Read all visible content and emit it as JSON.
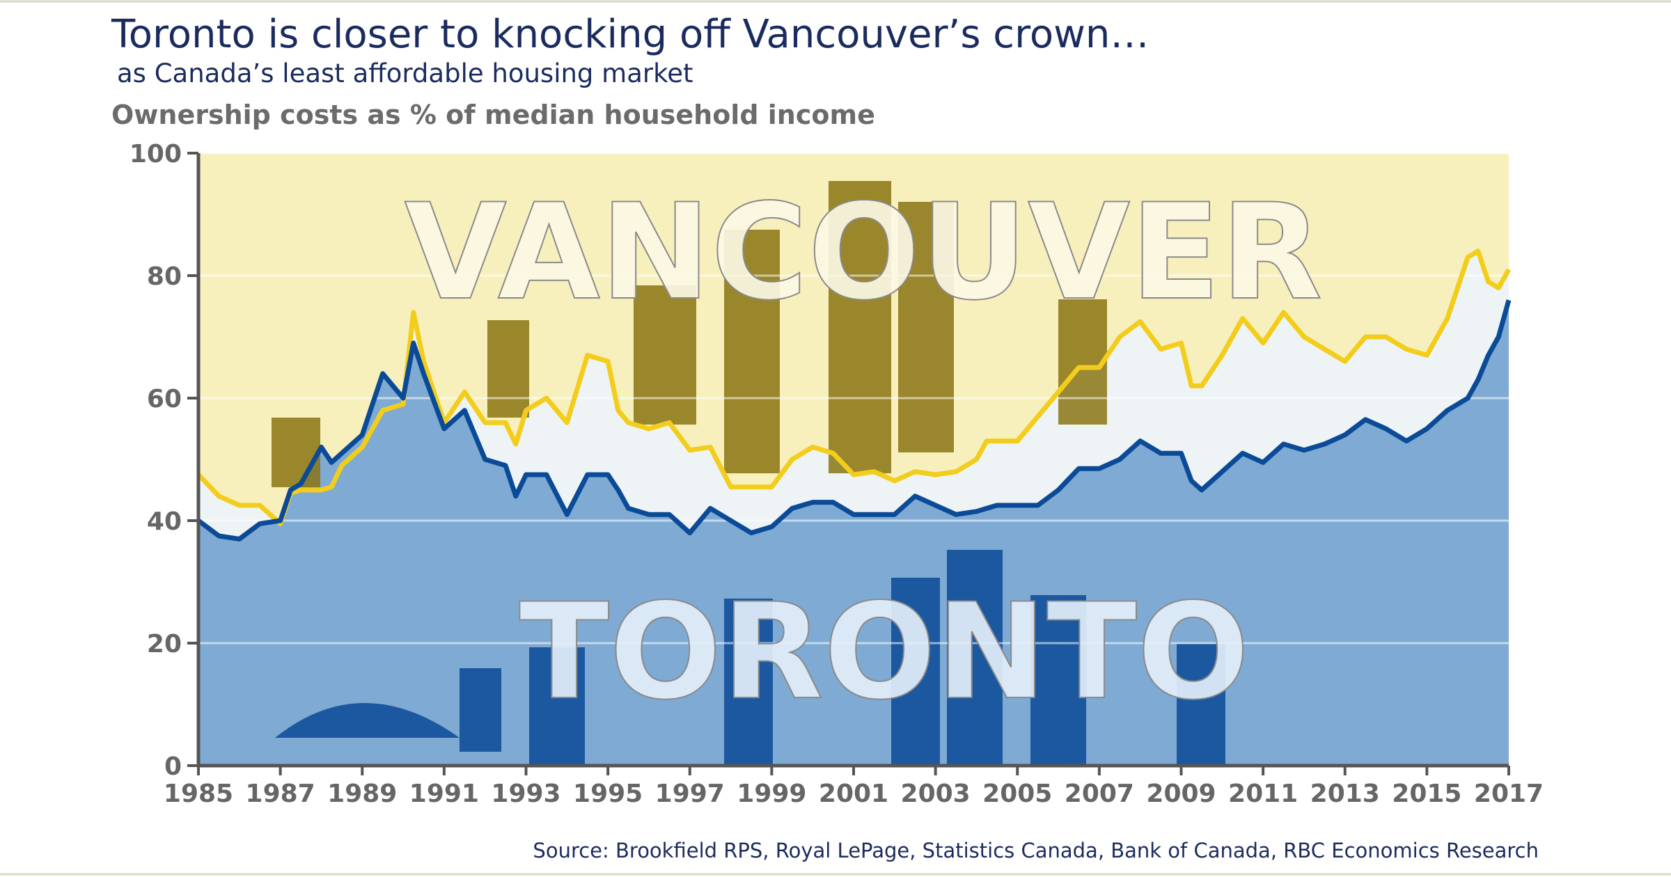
{
  "chart_data": {
    "type": "line",
    "title": "Toronto is closer to knocking off Vancouver’s crown…",
    "subtitle": "as Canada’s least affordable housing market",
    "y_label": "Ownership costs as % of median household income",
    "source": "Source: Brookfield RPS, Royal LePage, Statistics Canada, Bank of Canada, RBC Economics Research",
    "annotations": [
      "VANCOUVER",
      "TORONTO"
    ],
    "x": [
      1985,
      1985.5,
      1986,
      1986.5,
      1987,
      1987.25,
      1987.5,
      1988,
      1988.25,
      1988.5,
      1989,
      1989.5,
      1990,
      1990.25,
      1990.5,
      1991,
      1991.5,
      1992,
      1992.5,
      1992.75,
      1993,
      1993.5,
      1994,
      1994.5,
      1995,
      1995.25,
      1995.5,
      1996,
      1996.5,
      1997,
      1997.5,
      1998,
      1998.5,
      1999,
      1999.5,
      2000,
      2000.5,
      2001,
      2001.5,
      2002,
      2002.5,
      2003,
      2003.5,
      2004,
      2004.25,
      2004.5,
      2005,
      2005.5,
      2006,
      2006.5,
      2007,
      2007.5,
      2008,
      2008.5,
      2009,
      2009.25,
      2009.5,
      2010,
      2010.5,
      2011,
      2011.5,
      2012,
      2012.5,
      2013,
      2013.5,
      2014,
      2014.5,
      2015,
      2015.5,
      2016,
      2016.25,
      2016.5,
      2016.75,
      2017
    ],
    "series": [
      {
        "name": "VANCOUVER",
        "color": "#f2cd1c",
        "values": [
          47.5,
          44,
          42.5,
          42.5,
          39.5,
          44.5,
          45,
          45,
          45.5,
          49,
          52,
          58,
          59,
          74,
          66,
          56,
          61,
          56,
          56,
          52.5,
          58,
          60,
          56,
          67,
          66,
          58,
          56,
          55,
          56,
          51.5,
          52,
          45.5,
          45.5,
          45.5,
          50,
          52,
          51,
          47.5,
          48,
          46.5,
          48,
          47.5,
          48,
          50,
          53,
          53,
          53,
          57,
          61,
          65,
          65,
          70,
          72.5,
          68,
          69,
          62,
          62,
          67,
          73,
          69,
          74,
          70,
          68,
          66,
          70,
          70,
          68,
          67,
          73,
          83,
          84,
          79,
          78,
          81
        ]
      },
      {
        "name": "TORONTO",
        "color": "#0a4a97",
        "values": [
          40,
          37.5,
          37,
          39.5,
          40,
          45,
          46,
          52,
          49.5,
          51,
          54,
          64,
          60,
          69,
          64,
          55,
          58,
          50,
          49,
          44,
          47.5,
          47.5,
          41,
          47.5,
          47.5,
          45,
          42,
          41,
          41,
          38,
          42,
          40,
          38,
          39,
          42,
          43,
          43,
          41,
          41,
          41,
          44,
          42.5,
          41,
          41.5,
          42,
          42.5,
          42.5,
          42.5,
          45,
          48.5,
          48.5,
          50,
          53,
          51,
          51,
          46.5,
          45,
          48,
          51,
          49.5,
          52.5,
          51.5,
          52.5,
          54,
          56.5,
          55,
          53,
          55,
          58,
          60,
          63,
          67,
          70,
          76
        ]
      }
    ],
    "xlim": [
      1985,
      2017
    ],
    "xticks": [
      1985,
      1987,
      1989,
      1991,
      1993,
      1995,
      1997,
      1999,
      2001,
      2003,
      2005,
      2007,
      2009,
      2011,
      2013,
      2015,
      2017
    ],
    "ylim": [
      0,
      100
    ],
    "yticks": [
      0,
      20,
      40,
      60,
      80,
      100
    ],
    "grid": true
  }
}
